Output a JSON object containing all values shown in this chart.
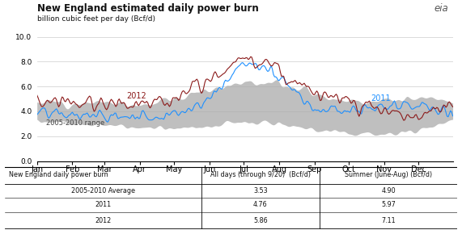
{
  "title": "New England estimated daily power burn",
  "ylabel": "billion cubic feet per day (Bcf/d)",
  "ylim": [
    0.0,
    10.0
  ],
  "yticks": [
    0.0,
    2.0,
    4.0,
    6.0,
    8.0,
    10.0
  ],
  "months": [
    "Jan",
    "Feb",
    "Mar",
    "Apr",
    "May",
    "Jun",
    "Jul",
    "Aug",
    "Sep",
    "Oct",
    "Nov",
    "Dec"
  ],
  "color_2012": "#8B1A1A",
  "color_2011": "#1E90FF",
  "color_range": "#AAAAAA",
  "label_2012": "2012",
  "label_2011": "2011",
  "label_range": "2005-2010 range",
  "table_headers": [
    "New England daily power burn",
    "All days (through 9/20)  (Bcf/d)",
    "Summer (June-Aug) (Bcf/d)"
  ],
  "table_rows": [
    [
      "2005-2010 Average",
      "3.53",
      "4.90"
    ],
    [
      "2011",
      "4.76",
      "5.97"
    ],
    [
      "2012",
      "5.86",
      "7.11"
    ]
  ],
  "month_starts": [
    0,
    31,
    59,
    90,
    120,
    151,
    181,
    212,
    243,
    273,
    304,
    334
  ],
  "range_low_base": [
    3.3,
    3.0,
    2.9,
    2.7,
    2.6,
    2.8,
    3.2,
    3.1,
    2.5,
    2.2,
    2.2,
    2.5,
    3.3
  ],
  "range_high_base": [
    4.8,
    4.7,
    4.7,
    4.6,
    5.0,
    5.8,
    6.5,
    6.3,
    5.5,
    4.8,
    4.8,
    5.0,
    4.8
  ],
  "line2011_base": [
    3.8,
    3.7,
    3.6,
    3.6,
    3.8,
    5.0,
    8.0,
    7.0,
    4.2,
    4.0,
    4.2,
    4.5,
    3.8
  ],
  "line2012_base": [
    4.8,
    4.8,
    4.7,
    4.7,
    5.2,
    6.5,
    8.5,
    7.5,
    5.5,
    5.0,
    3.8,
    3.6,
    4.8
  ],
  "noise_scale_range_low": 0.25,
  "noise_scale_range_high": 0.35,
  "noise_scale_2011": 0.5,
  "noise_scale_2012": 0.55,
  "sigma_range": 2.0,
  "sigma_lines": 1.2
}
